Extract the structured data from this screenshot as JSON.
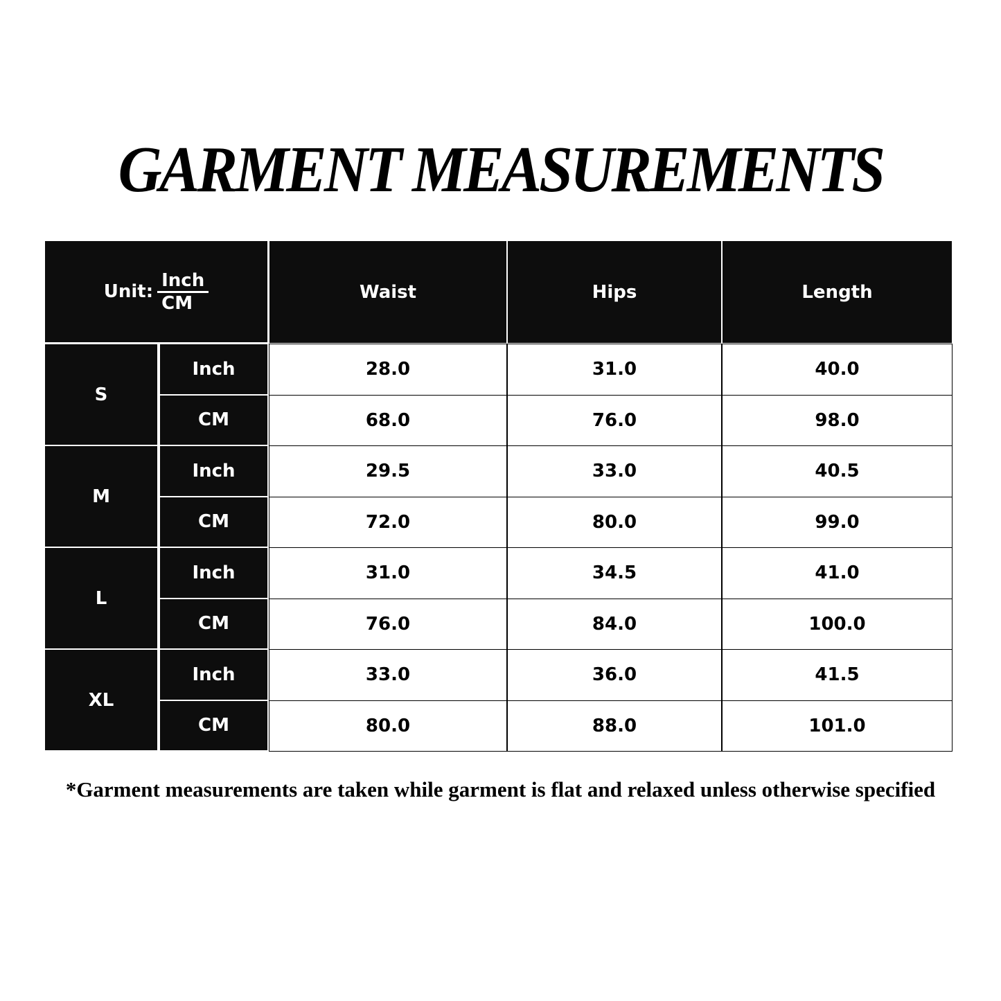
{
  "title": "GARMENT MEASUREMENTS",
  "header": {
    "unit_label": "Unit:",
    "unit_top": "Inch",
    "unit_bottom": "CM",
    "columns": [
      "Waist",
      "Hips",
      "Length"
    ]
  },
  "sizes": [
    {
      "size": "S",
      "rows": [
        {
          "unit": "Inch",
          "values": [
            "28.0",
            "31.0",
            "40.0"
          ]
        },
        {
          "unit": "CM",
          "values": [
            "68.0",
            "76.0",
            "98.0"
          ]
        }
      ]
    },
    {
      "size": "M",
      "rows": [
        {
          "unit": "Inch",
          "values": [
            "29.5",
            "33.0",
            "40.5"
          ]
        },
        {
          "unit": "CM",
          "values": [
            "72.0",
            "80.0",
            "99.0"
          ]
        }
      ]
    },
    {
      "size": "L",
      "rows": [
        {
          "unit": "Inch",
          "values": [
            "31.0",
            "34.5",
            "41.0"
          ]
        },
        {
          "unit": "CM",
          "values": [
            "76.0",
            "84.0",
            "100.0"
          ]
        }
      ]
    },
    {
      "size": "XL",
      "rows": [
        {
          "unit": "Inch",
          "values": [
            "33.0",
            "36.0",
            "41.5"
          ]
        },
        {
          "unit": "CM",
          "values": [
            "80.0",
            "88.0",
            "101.0"
          ]
        }
      ]
    }
  ],
  "footnote": "*Garment measurements are taken while garment is flat and relaxed unless otherwise specified",
  "colors": {
    "header_bg": "#0d0d0d",
    "header_text": "#ffffff",
    "cell_bg": "#ffffff",
    "cell_text": "#000000"
  }
}
